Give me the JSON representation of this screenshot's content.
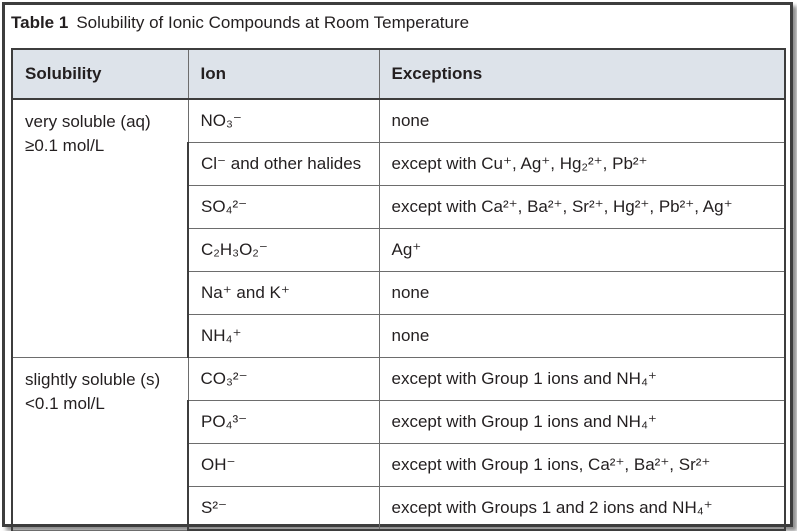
{
  "title": {
    "number": "Table 1",
    "text": "Solubility of Ionic Compounds at Room Temperature"
  },
  "columns": [
    "Solubility",
    "Ion",
    "Exceptions"
  ],
  "groups": [
    {
      "label": "very soluble (aq)",
      "threshold": "≥0.1 mol/L",
      "rows": [
        {
          "ion": "NO₃⁻",
          "exceptions": "none"
        },
        {
          "ion": "Cl⁻ and other halides",
          "exceptions": "except with Cu⁺, Ag⁺, Hg₂²⁺, Pb²⁺"
        },
        {
          "ion": "SO₄²⁻",
          "exceptions": "except with Ca²⁺, Ba²⁺, Sr²⁺, Hg²⁺, Pb²⁺, Ag⁺"
        },
        {
          "ion": "C₂H₃O₂⁻",
          "exceptions": "Ag⁺"
        },
        {
          "ion": "Na⁺ and K⁺",
          "exceptions": "none"
        },
        {
          "ion": "NH₄⁺",
          "exceptions": "none"
        }
      ]
    },
    {
      "label": "slightly soluble (s)",
      "threshold": "<0.1 mol/L",
      "rows": [
        {
          "ion": "CO₃²⁻",
          "exceptions": "except with Group 1 ions and NH₄⁺"
        },
        {
          "ion": "PO₄³⁻",
          "exceptions": "except with Group 1 ions and NH₄⁺"
        },
        {
          "ion": "OH⁻",
          "exceptions": "except with Group 1 ions, Ca²⁺, Ba²⁺, Sr²⁺"
        },
        {
          "ion": "S²⁻",
          "exceptions": "except with Groups 1 and 2 ions and NH₄⁺"
        }
      ]
    }
  ]
}
